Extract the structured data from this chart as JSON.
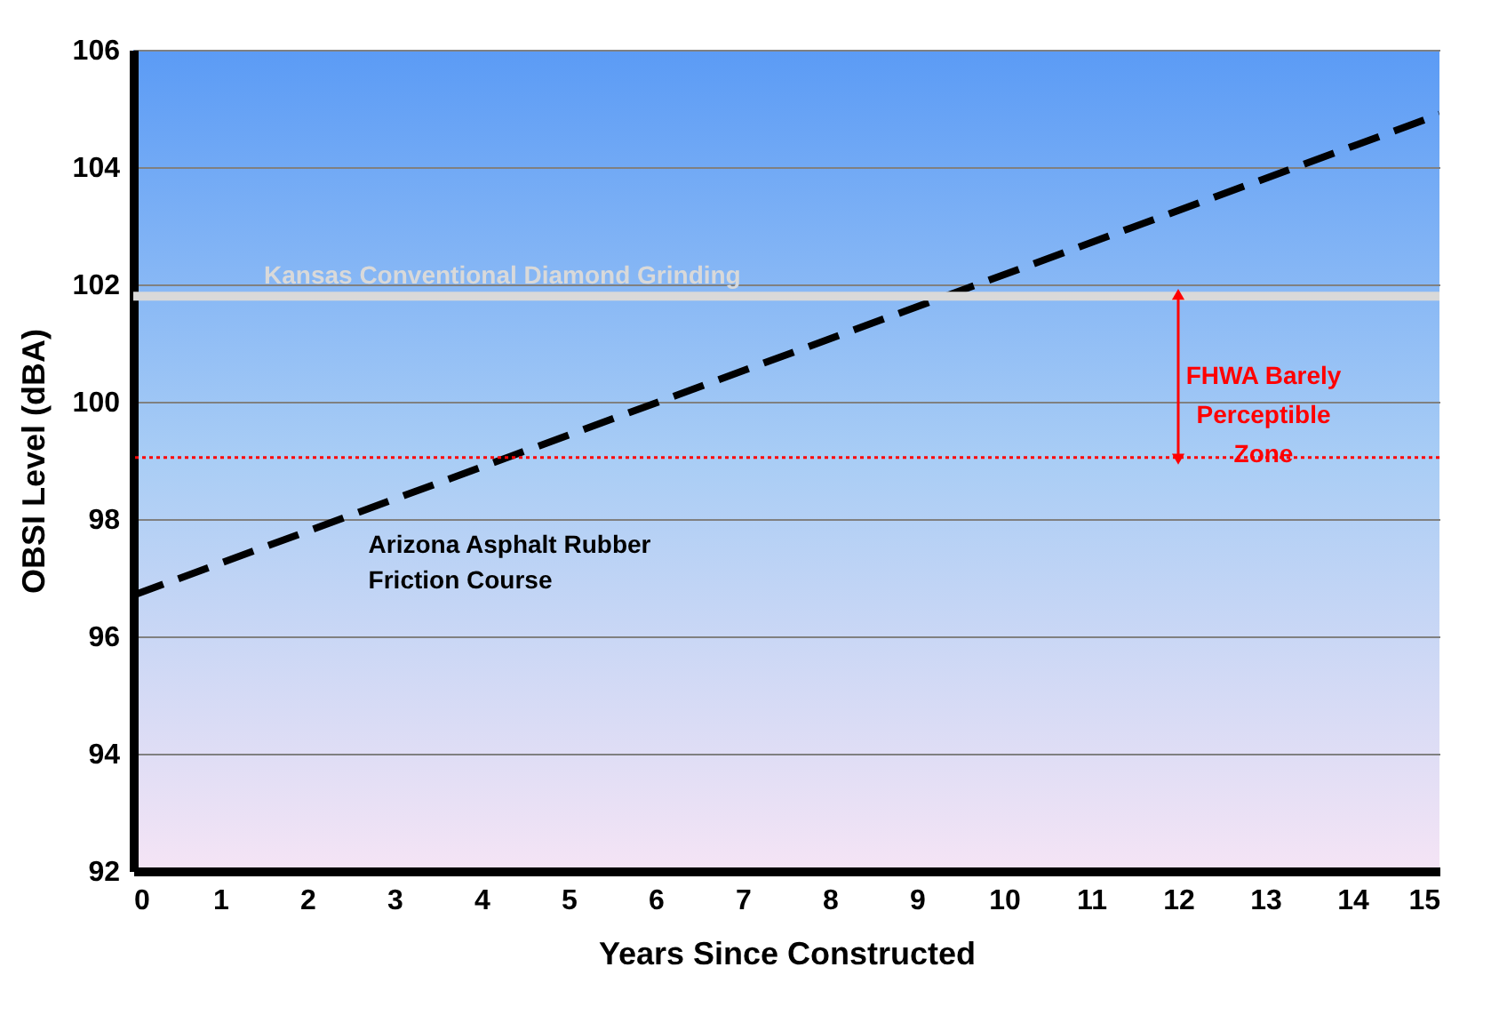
{
  "chart_data": {
    "type": "line",
    "xlabel": "Years Since Constructed",
    "ylabel": "OBSI Level (dBA)",
    "x": [
      0,
      15
    ],
    "series": [
      {
        "name": "Arizona Asphalt Rubber Friction Course",
        "color": "#000000",
        "values": [
          96.7,
          104.9
        ],
        "line_style": "dashed"
      }
    ],
    "xlim": [
      0,
      15
    ],
    "xticks": [
      0,
      1,
      2,
      3,
      4,
      5,
      6,
      7,
      8,
      9,
      10,
      11,
      12,
      13,
      14,
      15
    ],
    "ylim": [
      92,
      106
    ],
    "yticks": [
      92,
      94,
      96,
      98,
      100,
      102,
      104,
      106
    ],
    "grid": "y",
    "legend": false,
    "marker": "none",
    "ref_lines": [
      {
        "axis": "y",
        "value": 101.8,
        "label": "Kansas Conventional Diamond Grinding",
        "color": "#d9d9d9",
        "line_style": "solid"
      },
      {
        "axis": "y",
        "value": 99.05,
        "color": "#ff0000",
        "line_style": "dotted"
      }
    ],
    "annotations": [
      "FHWA Barely Perceptible Zone"
    ]
  }
}
